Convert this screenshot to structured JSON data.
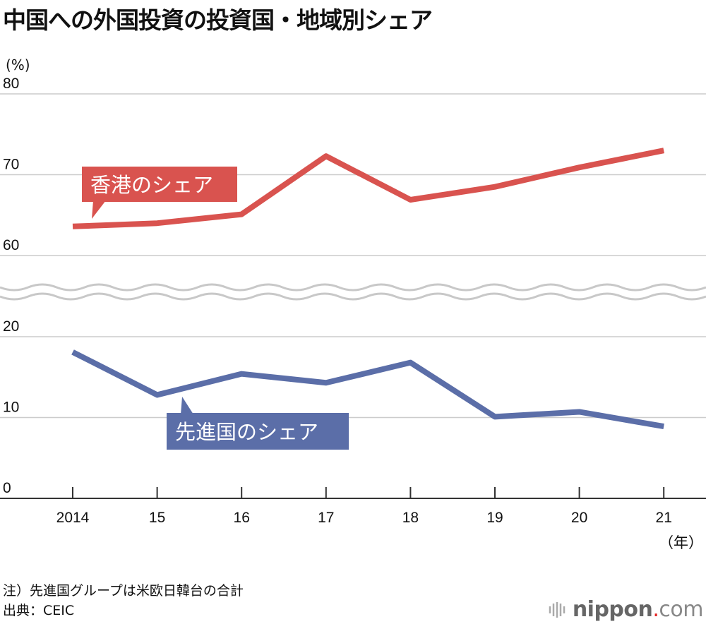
{
  "title": "中国への外国投資の投資国・地域別シェア",
  "notes": [
    "注）先進国グループは米欧日韓台の合計",
    "出典：CEIC"
  ],
  "logo": {
    "name": "nippon",
    "dot": ".",
    "suffix": "com"
  },
  "chart_data": {
    "type": "line",
    "title": "中国への外国投資の投資国・地域別シェア",
    "ylabel": "(%)",
    "xlabel": "（年）",
    "categories": [
      "2014",
      "15",
      "16",
      "17",
      "18",
      "19",
      "20",
      "21"
    ],
    "y_ticks": [
      "0",
      "10",
      "20",
      "60",
      "70",
      "80"
    ],
    "axis_break": [
      20,
      60
    ],
    "ylim": [
      0,
      80
    ],
    "grid": true,
    "series": [
      {
        "name": "香港のシェア",
        "color": "#d9534f",
        "values": [
          63.6,
          64.0,
          65.1,
          72.3,
          66.9,
          68.5,
          70.9,
          73.0
        ]
      },
      {
        "name": "先進国のシェア",
        "color": "#5b6ea8",
        "values": [
          18.1,
          12.8,
          15.4,
          14.3,
          16.8,
          10.1,
          10.7,
          8.9
        ]
      }
    ]
  }
}
